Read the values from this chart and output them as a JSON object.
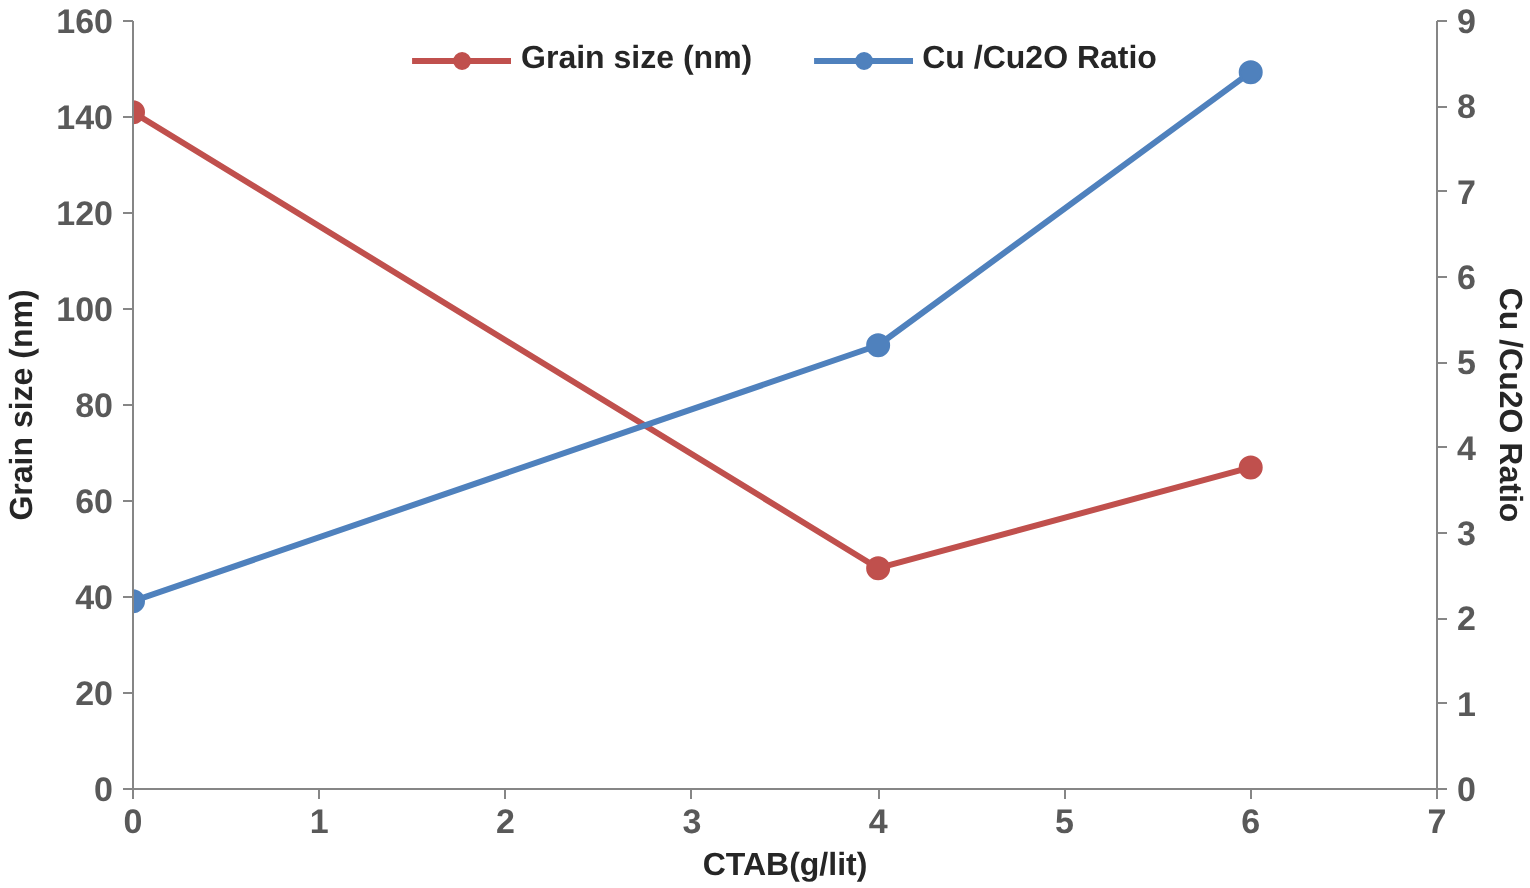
{
  "chart_data": {
    "type": "line",
    "xlabel": "CTAB(g/lit)",
    "ylabel": "Grain size (nm)",
    "y2label": "Cu /Cu2O Ratio",
    "x": [
      0,
      4,
      6
    ],
    "series": [
      {
        "name": "Grain size (nm)",
        "color": "#c0504d",
        "values": [
          141,
          46,
          67
        ]
      },
      {
        "name": "Cu /Cu2O Ratio",
        "color": "#4f81bd",
        "values": [
          2.2,
          5.2,
          8.4
        ],
        "axis": "y2"
      }
    ],
    "xlim": [
      0,
      7
    ],
    "xticks": [
      0,
      1,
      2,
      3,
      4,
      5,
      6,
      7
    ],
    "ylim": [
      0,
      160
    ],
    "yticks": [
      0,
      20,
      40,
      60,
      80,
      100,
      120,
      140,
      160
    ],
    "y2lim": [
      0,
      9
    ],
    "y2ticks": [
      0,
      1,
      2,
      3,
      4,
      5,
      6,
      7,
      8,
      9
    ],
    "marker": "circle",
    "line_style": "solid",
    "grid": false,
    "legend": "top"
  }
}
